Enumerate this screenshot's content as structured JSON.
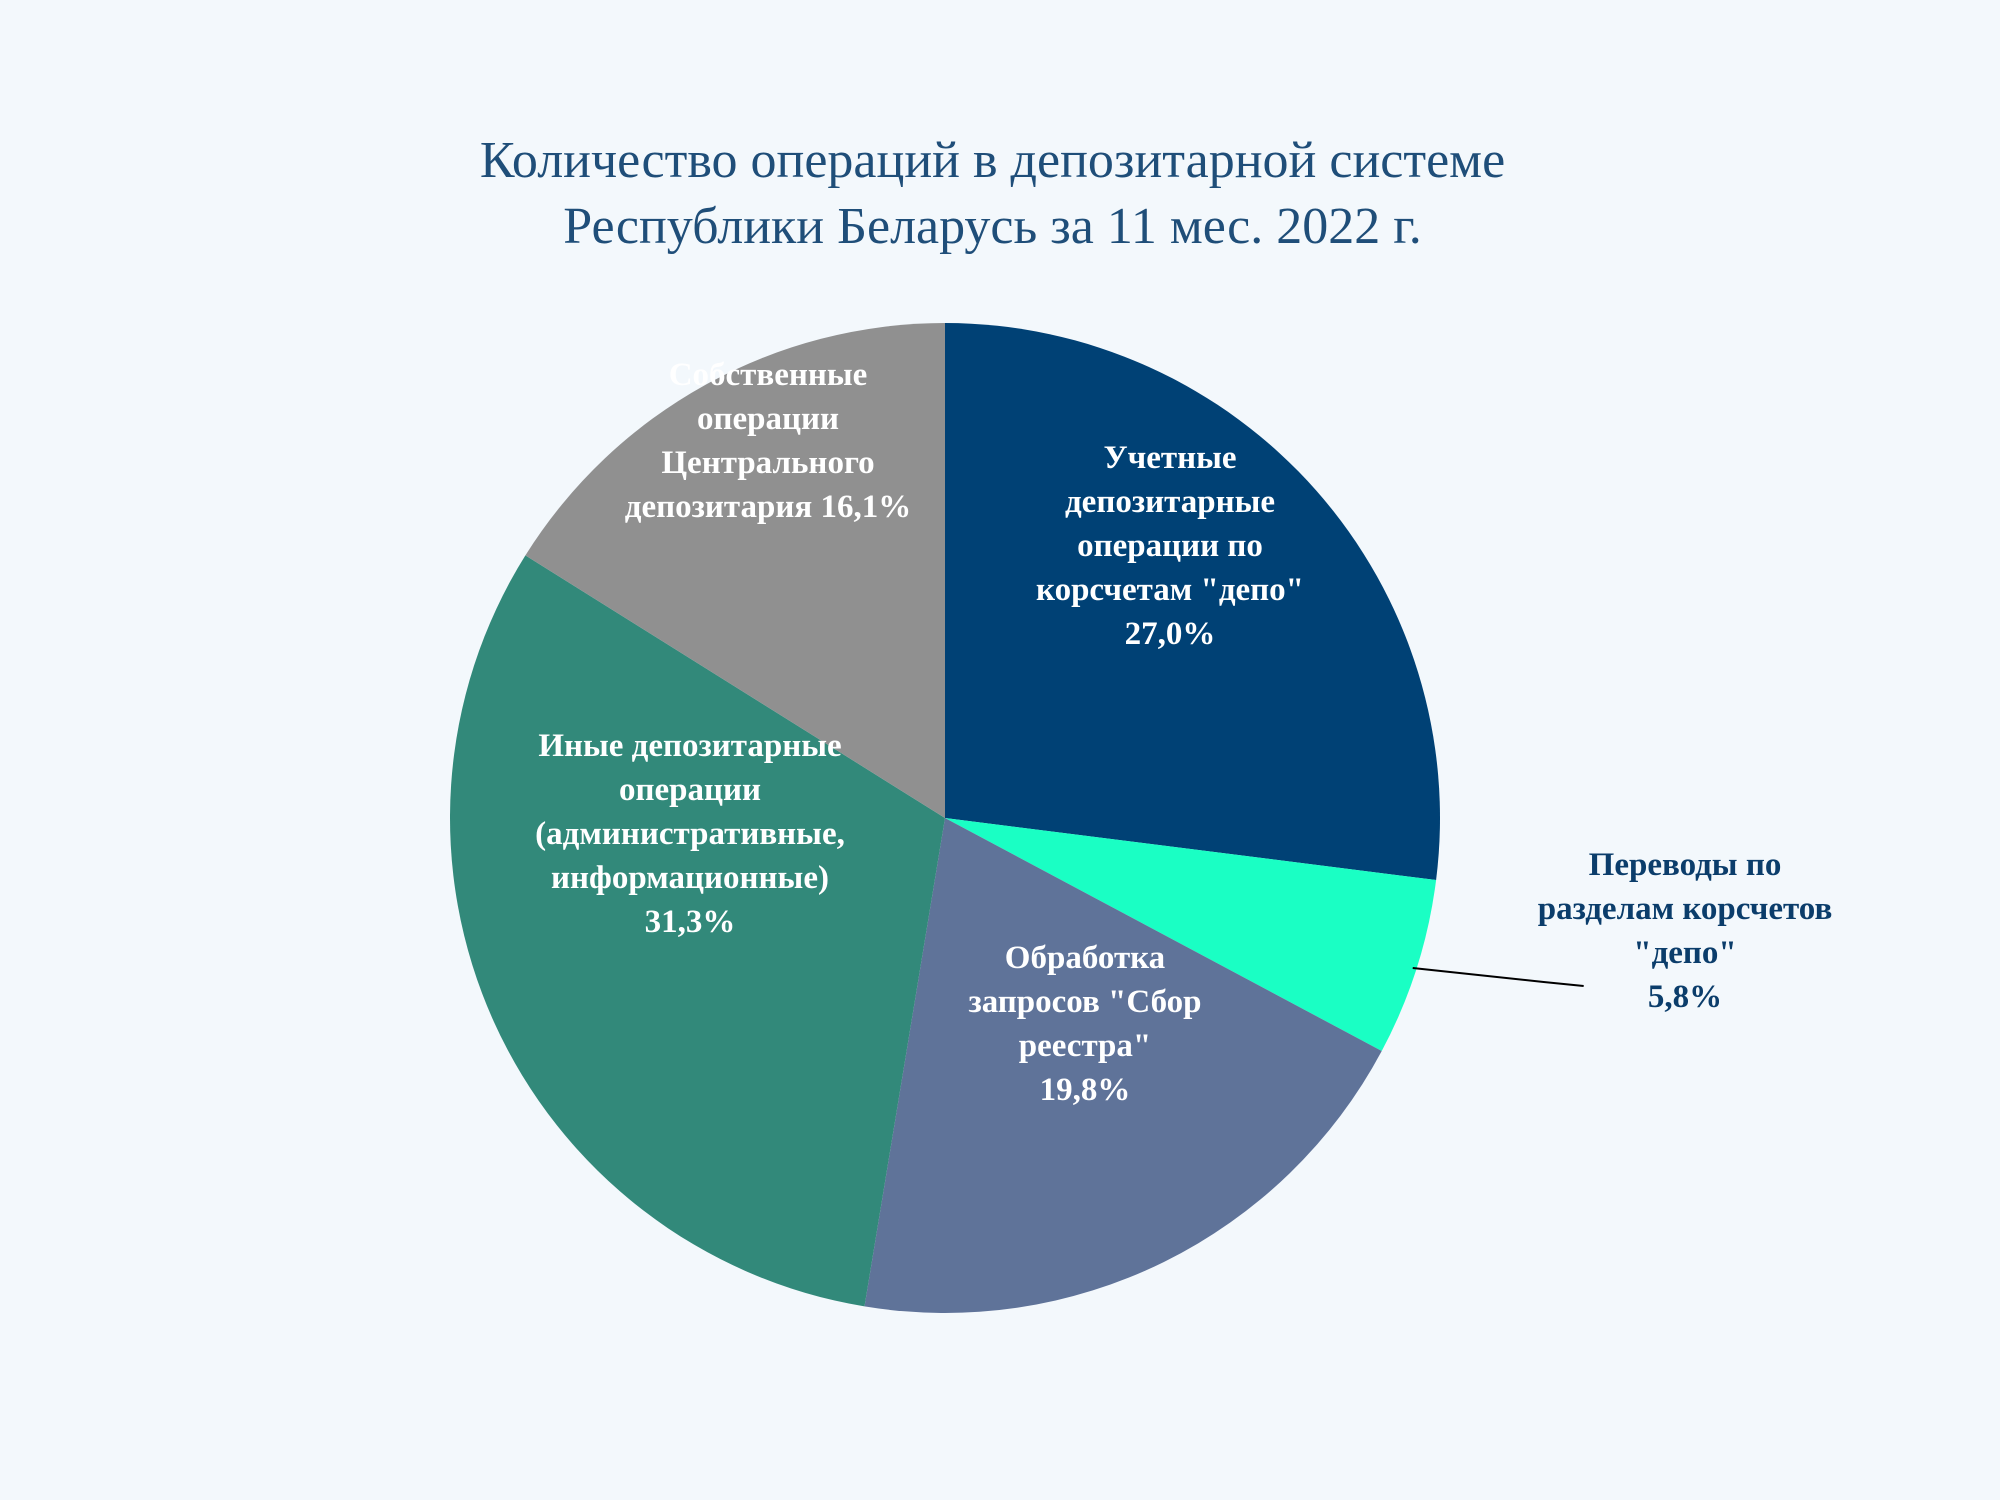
{
  "chart_data": {
    "type": "pie",
    "title": [
      "Количество операций в депозитарной системе",
      "Республики Беларусь за 11 мес. 2022 г."
    ],
    "legend": "none",
    "slices": [
      {
        "key": "accounting",
        "label_lines": [
          "Учетные",
          "депозитарные",
          "операции по",
          "корсчетам \"депо\"",
          "27,0%"
        ],
        "value": 27.0,
        "color": "#004175",
        "label_color": "#ffffff"
      },
      {
        "key": "transfers",
        "label_lines": [
          "Переводы по",
          "разделам корсчетов",
          "\"депо\"",
          "5,8%"
        ],
        "value": 5.8,
        "color": "#1affc4",
        "label_color": "#0b3d6b",
        "leader_line": true
      },
      {
        "key": "registry",
        "label_lines": [
          "Обработка",
          "запросов \"Сбор",
          "реестра\"",
          "19,8%"
        ],
        "value": 19.8,
        "color": "#5f7399",
        "label_color": "#ffffff"
      },
      {
        "key": "other",
        "label_lines": [
          "Иные депозитарные",
          "операции",
          "(административные,",
          "информационные)",
          "31,3%"
        ],
        "value": 31.3,
        "color": "#32897a",
        "label_color": "#ffffff"
      },
      {
        "key": "own",
        "label_lines": [
          "Собственные",
          "операции",
          "Центрального",
          "депозитария 16,1%"
        ],
        "value": 16.1,
        "color": "#909090",
        "label_color": "#ffffff"
      }
    ]
  }
}
